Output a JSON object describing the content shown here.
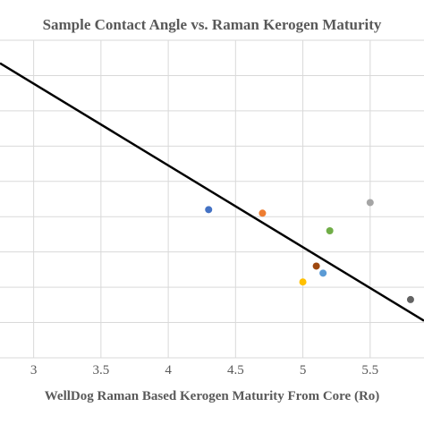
{
  "chart_data": {
    "type": "scatter",
    "title": "Sample Contact Angle vs. Raman Kerogen Maturity",
    "xlabel": "WellDog Raman Based Kerogen Maturity From Core (Ro)",
    "ylabel": "",
    "x_ticks": [
      "3",
      "3.5",
      "4",
      "4.5",
      "5",
      "5.5"
    ],
    "xlim": [
      2.75,
      5.9
    ],
    "ylim": [
      0,
      9
    ],
    "grid": true,
    "points": [
      {
        "x": 4.3,
        "y": 4.2,
        "color": "#4472c4"
      },
      {
        "x": 4.7,
        "y": 4.1,
        "color": "#ed7d31"
      },
      {
        "x": 5.5,
        "y": 4.4,
        "color": "#a5a5a5"
      },
      {
        "x": 5.2,
        "y": 3.6,
        "color": "#70ad47"
      },
      {
        "x": 5.1,
        "y": 2.6,
        "color": "#9e480e"
      },
      {
        "x": 5.15,
        "y": 2.4,
        "color": "#5b9bd5"
      },
      {
        "x": 5.0,
        "y": 2.15,
        "color": "#ffc000"
      },
      {
        "x": 5.8,
        "y": 1.65,
        "color": "#636363"
      }
    ],
    "trendline": {
      "x": [
        2.75,
        5.9
      ],
      "y": [
        8.35,
        1.05
      ],
      "color": "#000000"
    }
  }
}
